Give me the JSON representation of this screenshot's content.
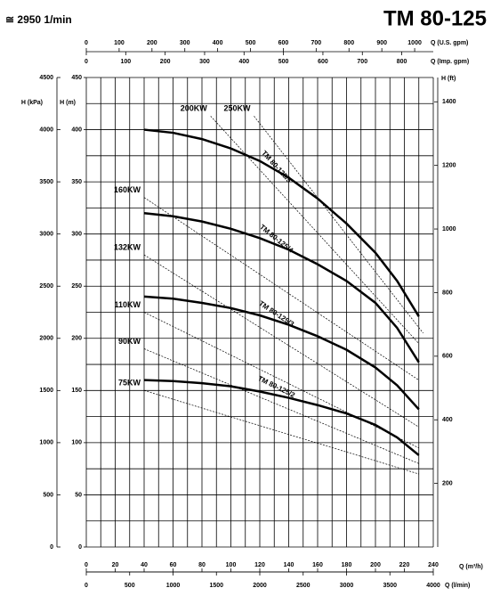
{
  "chart_data": {
    "type": "line",
    "speed": "≅ 2950 1/min",
    "title": "TM 80-125",
    "xlabel": "Q (m³/h)",
    "ylabel": "H (m)",
    "xlim": [
      0,
      240
    ],
    "xticks": [
      0,
      20,
      40,
      60,
      80,
      100,
      120,
      140,
      160,
      180,
      200,
      220,
      240
    ],
    "ylim": [
      0,
      450
    ],
    "yticks": [
      0,
      50,
      100,
      150,
      200,
      250,
      300,
      350,
      400,
      450
    ],
    "xgrid": [
      0,
      10,
      20,
      30,
      40,
      50,
      60,
      70,
      80,
      90,
      100,
      110,
      120,
      130,
      140,
      150,
      160,
      170,
      180,
      190,
      200,
      210,
      220,
      230,
      240
    ],
    "ygrid": [
      0,
      25,
      50,
      75,
      100,
      125,
      150,
      175,
      200,
      225,
      250,
      275,
      300,
      325,
      350,
      375,
      400,
      425,
      450
    ],
    "grid": true,
    "secondary_axes": [
      {
        "label": "Q (U.S. gpm)",
        "position": "top",
        "lim": [
          0,
          1056.7
        ],
        "ticks": [
          0,
          100,
          200,
          300,
          400,
          500,
          600,
          700,
          800,
          900,
          1000
        ]
      },
      {
        "label": "Q (Imp. gpm)",
        "position": "top-inner",
        "lim": [
          0,
          879.9
        ],
        "ticks": [
          0,
          100,
          200,
          300,
          400,
          500,
          600,
          700,
          800
        ]
      },
      {
        "label": "Q (l/min)",
        "position": "bottom-outer",
        "lim": [
          0,
          4000
        ],
        "ticks": [
          0,
          500,
          1000,
          1500,
          2000,
          2500,
          3000,
          3500,
          4000
        ]
      },
      {
        "label": "H (kPa)",
        "position": "left",
        "lim": [
          0,
          4500
        ],
        "ticks": [
          0,
          500,
          1000,
          1500,
          2000,
          2500,
          3000,
          3500,
          4000,
          4500
        ]
      },
      {
        "label": "H (ft)",
        "position": "right",
        "lim": [
          0,
          1476.4
        ],
        "ticks": [
          200,
          400,
          600,
          800,
          1000,
          1200,
          1400
        ]
      }
    ],
    "x": [
      40,
      60,
      80,
      100,
      120,
      140,
      160,
      180,
      200,
      215,
      230
    ],
    "series": [
      {
        "name": "TM 80-125/5",
        "color": "#000000",
        "values": [
          400,
          397,
          391,
          382,
          370,
          354,
          334,
          310,
          282,
          255,
          221
        ]
      },
      {
        "name": "TM 80-125/4",
        "color": "#000000",
        "values": [
          320,
          317,
          312,
          305,
          296,
          285,
          271,
          255,
          234,
          210,
          177
        ]
      },
      {
        "name": "TM 80-125/3",
        "color": "#000000",
        "values": [
          240,
          238,
          234,
          229,
          222,
          213,
          202,
          189,
          172,
          155,
          132
        ]
      },
      {
        "name": "TM 80-125/2",
        "color": "#000000",
        "values": [
          160,
          159,
          157,
          154,
          149,
          143,
          136,
          128,
          117,
          105,
          88
        ]
      }
    ],
    "power_lines": [
      {
        "label": "250KW",
        "q": [
          116,
          233
        ],
        "h": [
          413,
          205
        ]
      },
      {
        "label": "200KW",
        "q": [
          86,
          230
        ],
        "h": [
          413,
          195
        ]
      },
      {
        "label": "160KW",
        "q": [
          40,
          230
        ],
        "h": [
          335,
          160
        ]
      },
      {
        "label": "132KW",
        "q": [
          40,
          230
        ],
        "h": [
          280,
          115
        ]
      },
      {
        "label": "110KW",
        "q": [
          40,
          230
        ],
        "h": [
          225,
          95
        ]
      },
      {
        "label": "90KW",
        "q": [
          40,
          230
        ],
        "h": [
          190,
          80
        ]
      },
      {
        "label": "75KW",
        "q": [
          40,
          230
        ],
        "h": [
          150,
          70
        ]
      }
    ]
  }
}
